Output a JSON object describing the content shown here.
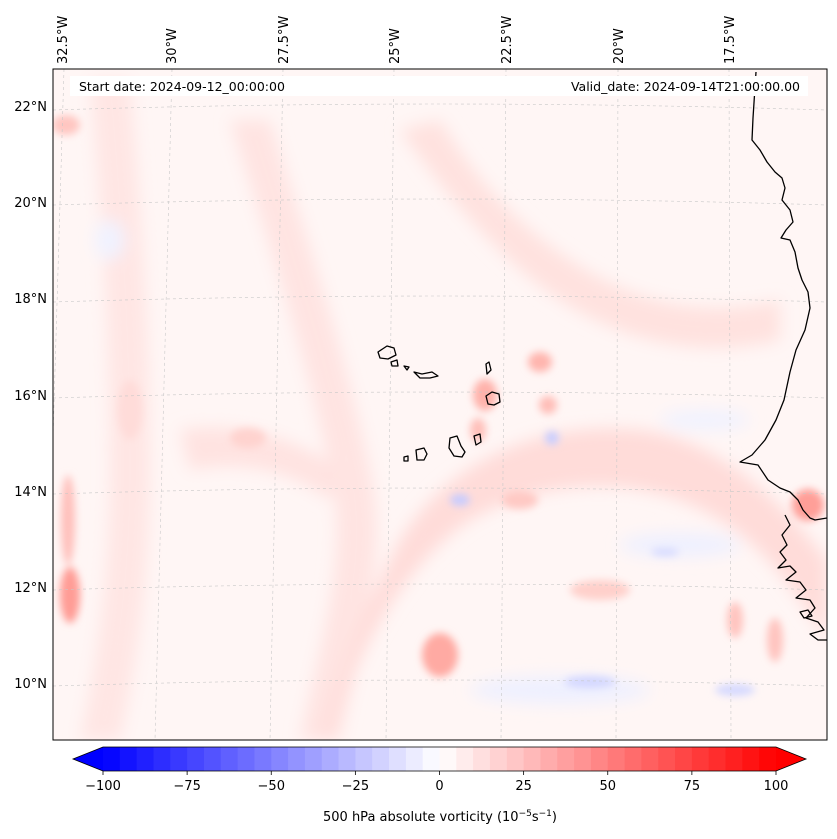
{
  "map": {
    "start_date": "Start date: 2024-09-12_00:00:00",
    "valid_date": "Valid_date: 2024-09-14T21:00:00.00",
    "lon_labels": [
      "32.5°W",
      "30°W",
      "27.5°W",
      "25°W",
      "22.5°W",
      "20°W",
      "17.5°W"
    ],
    "lat_labels": [
      "22°N",
      "20°N",
      "18°N",
      "16°N",
      "14°N",
      "12°N",
      "10°N"
    ],
    "extent": {
      "lon_min": -32.6,
      "lon_max": -15.9,
      "lat_min": 8.9,
      "lat_max": 22.7
    },
    "coastline_color": "#000000",
    "gridline_color": "#bbbbbb"
  },
  "colorbar": {
    "label": "500 hPa absolute vorticity (10",
    "label_exp": "−5",
    "label_unit": "s",
    "label_unit_exp": "−1",
    "label_close": ")",
    "ticks": [
      "−100",
      "−75",
      "−50",
      "−25",
      "0",
      "25",
      "50",
      "75",
      "100"
    ],
    "min": -100,
    "max": 100,
    "levels": 40,
    "cmap": [
      "#0000ff",
      "#ffffff",
      "#ff0000"
    ]
  }
}
